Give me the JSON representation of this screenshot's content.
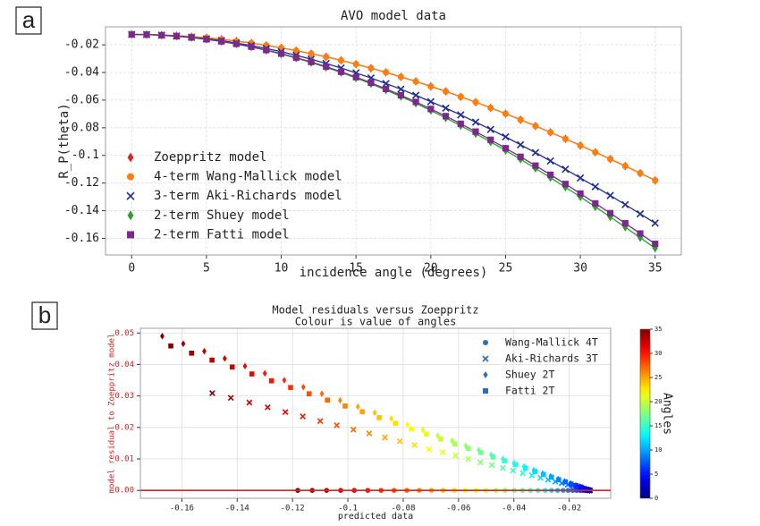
{
  "chart_data": [
    {
      "panel": "a",
      "type": "line",
      "title": "AVO model data",
      "xlabel": "incidence angle (degrees)",
      "ylabel": "R_P(theta)",
      "x": [
        0,
        1,
        2,
        3,
        4,
        5,
        6,
        7,
        8,
        9,
        10,
        11,
        12,
        13,
        14,
        15,
        16,
        17,
        18,
        19,
        20,
        21,
        22,
        23,
        24,
        25,
        26,
        27,
        28,
        29,
        30,
        31,
        32,
        33,
        34,
        35
      ],
      "xlim": [
        -1.75,
        36.75
      ],
      "xticks": [
        0,
        5,
        10,
        15,
        20,
        25,
        30,
        35
      ],
      "ylim": [
        -0.172,
        -0.007
      ],
      "yticks": [
        -0.02,
        -0.04,
        -0.06,
        -0.08,
        -0.1,
        -0.12,
        -0.14,
        -0.16
      ],
      "grid": true,
      "legend": "lower left",
      "series": [
        {
          "name": "Zoeppritz model",
          "color": "#d62728",
          "marker": "diamond",
          "values": [
            -0.0125,
            -0.0126,
            -0.0129,
            -0.0134,
            -0.0141,
            -0.0149,
            -0.016,
            -0.0173,
            -0.0187,
            -0.0204,
            -0.0222,
            -0.0242,
            -0.0264,
            -0.0287,
            -0.0313,
            -0.034,
            -0.0369,
            -0.0399,
            -0.0432,
            -0.0465,
            -0.0501,
            -0.0537,
            -0.0576,
            -0.0615,
            -0.0656,
            -0.0698,
            -0.0742,
            -0.0787,
            -0.0833,
            -0.088,
            -0.0928,
            -0.0977,
            -0.1026,
            -0.1077,
            -0.1129,
            -0.1181
          ]
        },
        {
          "name": "4-term Wang-Mallick model",
          "color": "#ff7f0e",
          "marker": "circle",
          "values": [
            -0.0125,
            -0.0126,
            -0.0129,
            -0.0134,
            -0.0141,
            -0.0149,
            -0.016,
            -0.0173,
            -0.0187,
            -0.0204,
            -0.0222,
            -0.0242,
            -0.0264,
            -0.0287,
            -0.0313,
            -0.034,
            -0.0369,
            -0.0399,
            -0.0432,
            -0.0465,
            -0.0501,
            -0.0537,
            -0.0576,
            -0.0615,
            -0.0656,
            -0.0698,
            -0.0742,
            -0.0787,
            -0.0833,
            -0.088,
            -0.0928,
            -0.0977,
            -0.1026,
            -0.1077,
            -0.1129,
            -0.1181
          ]
        },
        {
          "name": "3-term Aki-Richards model",
          "color": "#1f2d8f",
          "marker": "x",
          "values": [
            -0.0125,
            -0.0126,
            -0.013,
            -0.0136,
            -0.0145,
            -0.0157,
            -0.017,
            -0.0187,
            -0.0205,
            -0.0227,
            -0.025,
            -0.0276,
            -0.0304,
            -0.0335,
            -0.0368,
            -0.0403,
            -0.044,
            -0.048,
            -0.0521,
            -0.0565,
            -0.0611,
            -0.0658,
            -0.0707,
            -0.0759,
            -0.0812,
            -0.0866,
            -0.0923,
            -0.098,
            -0.104,
            -0.11,
            -0.1163,
            -0.1226,
            -0.129,
            -0.1356,
            -0.1423,
            -0.149
          ]
        },
        {
          "name": "2-term Shuey model",
          "color": "#2ca02c",
          "marker": "diamond",
          "values": [
            -0.0125,
            -0.0126,
            -0.0131,
            -0.0138,
            -0.0148,
            -0.0161,
            -0.0176,
            -0.0195,
            -0.0216,
            -0.024,
            -0.0267,
            -0.0296,
            -0.0328,
            -0.0363,
            -0.04,
            -0.044,
            -0.0482,
            -0.0527,
            -0.0574,
            -0.0623,
            -0.0675,
            -0.0729,
            -0.0785,
            -0.0843,
            -0.0903,
            -0.0964,
            -0.1028,
            -0.1094,
            -0.1161,
            -0.123,
            -0.13,
            -0.1372,
            -0.1445,
            -0.1519,
            -0.1595,
            -0.1671
          ]
        },
        {
          "name": "2-term Fatti model",
          "color": "#7b2a8c",
          "marker": "square",
          "values": [
            -0.0125,
            -0.0126,
            -0.0131,
            -0.0138,
            -0.0147,
            -0.016,
            -0.0175,
            -0.0193,
            -0.0214,
            -0.0238,
            -0.0264,
            -0.0293,
            -0.0324,
            -0.0358,
            -0.0395,
            -0.0434,
            -0.0475,
            -0.0519,
            -0.0565,
            -0.0613,
            -0.0664,
            -0.0716,
            -0.0771,
            -0.0828,
            -0.0887,
            -0.0948,
            -0.101,
            -0.1074,
            -0.114,
            -0.1207,
            -0.1276,
            -0.1347,
            -0.1418,
            -0.1491,
            -0.1565,
            -0.164
          ]
        }
      ]
    },
    {
      "panel": "b",
      "type": "scatter",
      "title": "Model residuals versus Zoeppritz",
      "subtitle": "Colour is value of angles",
      "xlabel": "predicted data",
      "ylabel": "model residual to Zoeppritz model",
      "angles": [
        0,
        1,
        2,
        3,
        4,
        5,
        6,
        7,
        8,
        9,
        10,
        11,
        12,
        13,
        14,
        15,
        16,
        17,
        18,
        19,
        20,
        21,
        22,
        23,
        24,
        25,
        26,
        27,
        28,
        29,
        30,
        31,
        32,
        33,
        34,
        35
      ],
      "colorbar": {
        "label": "Angles",
        "lim": [
          0,
          35
        ],
        "ticks": [
          0,
          5,
          10,
          15,
          20,
          25,
          30,
          35
        ],
        "cmap": "jet"
      },
      "xlim": [
        -0.175,
        -0.005
      ],
      "xticks": [
        -0.16,
        -0.14,
        -0.12,
        -0.1,
        -0.08,
        -0.06,
        -0.04,
        -0.02
      ],
      "ylim": [
        -0.0025,
        0.0515
      ],
      "yticks": [
        {
          "value": 0,
          "label": "0.00"
        },
        {
          "value": 0.01,
          "label": "0.01"
        },
        {
          "value": 0.02,
          "label": "0.02"
        },
        {
          "value": 0.03,
          "label": "0.03"
        },
        {
          "value": 0.04,
          "label": "0.04"
        },
        {
          "value": 0.05,
          "label": "0.05"
        }
      ],
      "grid": true,
      "legend": "upper right",
      "legend_color": "#2f6db5",
      "reference_line": {
        "value": 0,
        "color": "#d62728"
      },
      "series": [
        {
          "name": "Wang-Mallick 4T",
          "marker": "circle",
          "x": [
            -0.0125,
            -0.0126,
            -0.0129,
            -0.0134,
            -0.0141,
            -0.0149,
            -0.016,
            -0.0173,
            -0.0187,
            -0.0204,
            -0.0222,
            -0.0242,
            -0.0264,
            -0.0287,
            -0.0313,
            -0.034,
            -0.0369,
            -0.0399,
            -0.0432,
            -0.0465,
            -0.0501,
            -0.0537,
            -0.0576,
            -0.0615,
            -0.0656,
            -0.0698,
            -0.0742,
            -0.0787,
            -0.0833,
            -0.088,
            -0.0928,
            -0.0977,
            -0.1026,
            -0.1077,
            -0.1129,
            -0.1181
          ],
          "values": [
            0,
            0,
            0,
            0,
            0,
            0,
            0,
            0,
            0,
            0,
            0,
            0,
            0,
            0,
            0,
            0,
            0,
            0,
            0,
            0,
            0,
            0,
            0,
            0,
            0,
            0,
            0,
            0,
            0,
            0,
            0,
            0,
            0,
            0,
            0,
            0
          ]
        },
        {
          "name": "Aki-Richards 3T",
          "marker": "x",
          "x": [
            -0.0125,
            -0.0126,
            -0.013,
            -0.0136,
            -0.0145,
            -0.0157,
            -0.017,
            -0.0187,
            -0.0205,
            -0.0227,
            -0.025,
            -0.0276,
            -0.0304,
            -0.0335,
            -0.0368,
            -0.0403,
            -0.044,
            -0.048,
            -0.0521,
            -0.0565,
            -0.0611,
            -0.0658,
            -0.0707,
            -0.0759,
            -0.0812,
            -0.0866,
            -0.0923,
            -0.098,
            -0.104,
            -0.11,
            -0.1163,
            -0.1226,
            -0.129,
            -0.1356,
            -0.1423,
            -0.149
          ],
          "values": [
            0,
            0,
            0.0001,
            0.0002,
            0.0004,
            0.0008,
            0.001,
            0.0014,
            0.0018,
            0.0023,
            0.0028,
            0.0034,
            0.004,
            0.0048,
            0.0055,
            0.0063,
            0.0071,
            0.0081,
            0.0089,
            0.01,
            0.011,
            0.0121,
            0.0131,
            0.0144,
            0.0156,
            0.0168,
            0.0181,
            0.0193,
            0.0207,
            0.022,
            0.0235,
            0.0249,
            0.0264,
            0.0279,
            0.0294,
            0.0309
          ]
        },
        {
          "name": "Shuey 2T",
          "marker": "diamond",
          "x": [
            -0.0125,
            -0.0126,
            -0.0131,
            -0.0138,
            -0.0148,
            -0.0161,
            -0.0176,
            -0.0195,
            -0.0216,
            -0.024,
            -0.0267,
            -0.0296,
            -0.0328,
            -0.0363,
            -0.04,
            -0.044,
            -0.0482,
            -0.0527,
            -0.0574,
            -0.0623,
            -0.0675,
            -0.0729,
            -0.0785,
            -0.0843,
            -0.0903,
            -0.0964,
            -0.1028,
            -0.1094,
            -0.1161,
            -0.123,
            -0.13,
            -0.1372,
            -0.1445,
            -0.1519,
            -0.1595,
            -0.1671
          ],
          "values": [
            0,
            0,
            0.0002,
            0.0004,
            0.0007,
            0.0012,
            0.0016,
            0.0022,
            0.0029,
            0.0036,
            0.0045,
            0.0054,
            0.0064,
            0.0076,
            0.0087,
            0.01,
            0.0113,
            0.0128,
            0.0142,
            0.0158,
            0.0174,
            0.0192,
            0.0209,
            0.0228,
            0.0247,
            0.0266,
            0.0286,
            0.0307,
            0.0328,
            0.035,
            0.0372,
            0.0395,
            0.0419,
            0.0442,
            0.0466,
            0.049
          ]
        },
        {
          "name": "Fatti 2T",
          "marker": "square",
          "x": [
            -0.0125,
            -0.0126,
            -0.0131,
            -0.0138,
            -0.0147,
            -0.016,
            -0.0175,
            -0.0193,
            -0.0214,
            -0.0238,
            -0.0264,
            -0.0293,
            -0.0324,
            -0.0358,
            -0.0395,
            -0.0434,
            -0.0475,
            -0.0519,
            -0.0565,
            -0.0613,
            -0.0664,
            -0.0716,
            -0.0771,
            -0.0828,
            -0.0887,
            -0.0948,
            -0.101,
            -0.1074,
            -0.114,
            -0.1207,
            -0.1276,
            -0.1347,
            -0.1418,
            -0.1491,
            -0.1565,
            -0.164
          ],
          "values": [
            0,
            0,
            0.0002,
            0.0004,
            0.0006,
            0.0011,
            0.0015,
            0.002,
            0.0027,
            0.0034,
            0.0042,
            0.0051,
            0.006,
            0.0071,
            0.0082,
            0.0094,
            0.0106,
            0.012,
            0.0133,
            0.0148,
            0.0163,
            0.0179,
            0.0195,
            0.0213,
            0.0231,
            0.025,
            0.0268,
            0.0287,
            0.0307,
            0.0327,
            0.0348,
            0.037,
            0.0392,
            0.0414,
            0.0436,
            0.0459
          ]
        }
      ]
    }
  ]
}
